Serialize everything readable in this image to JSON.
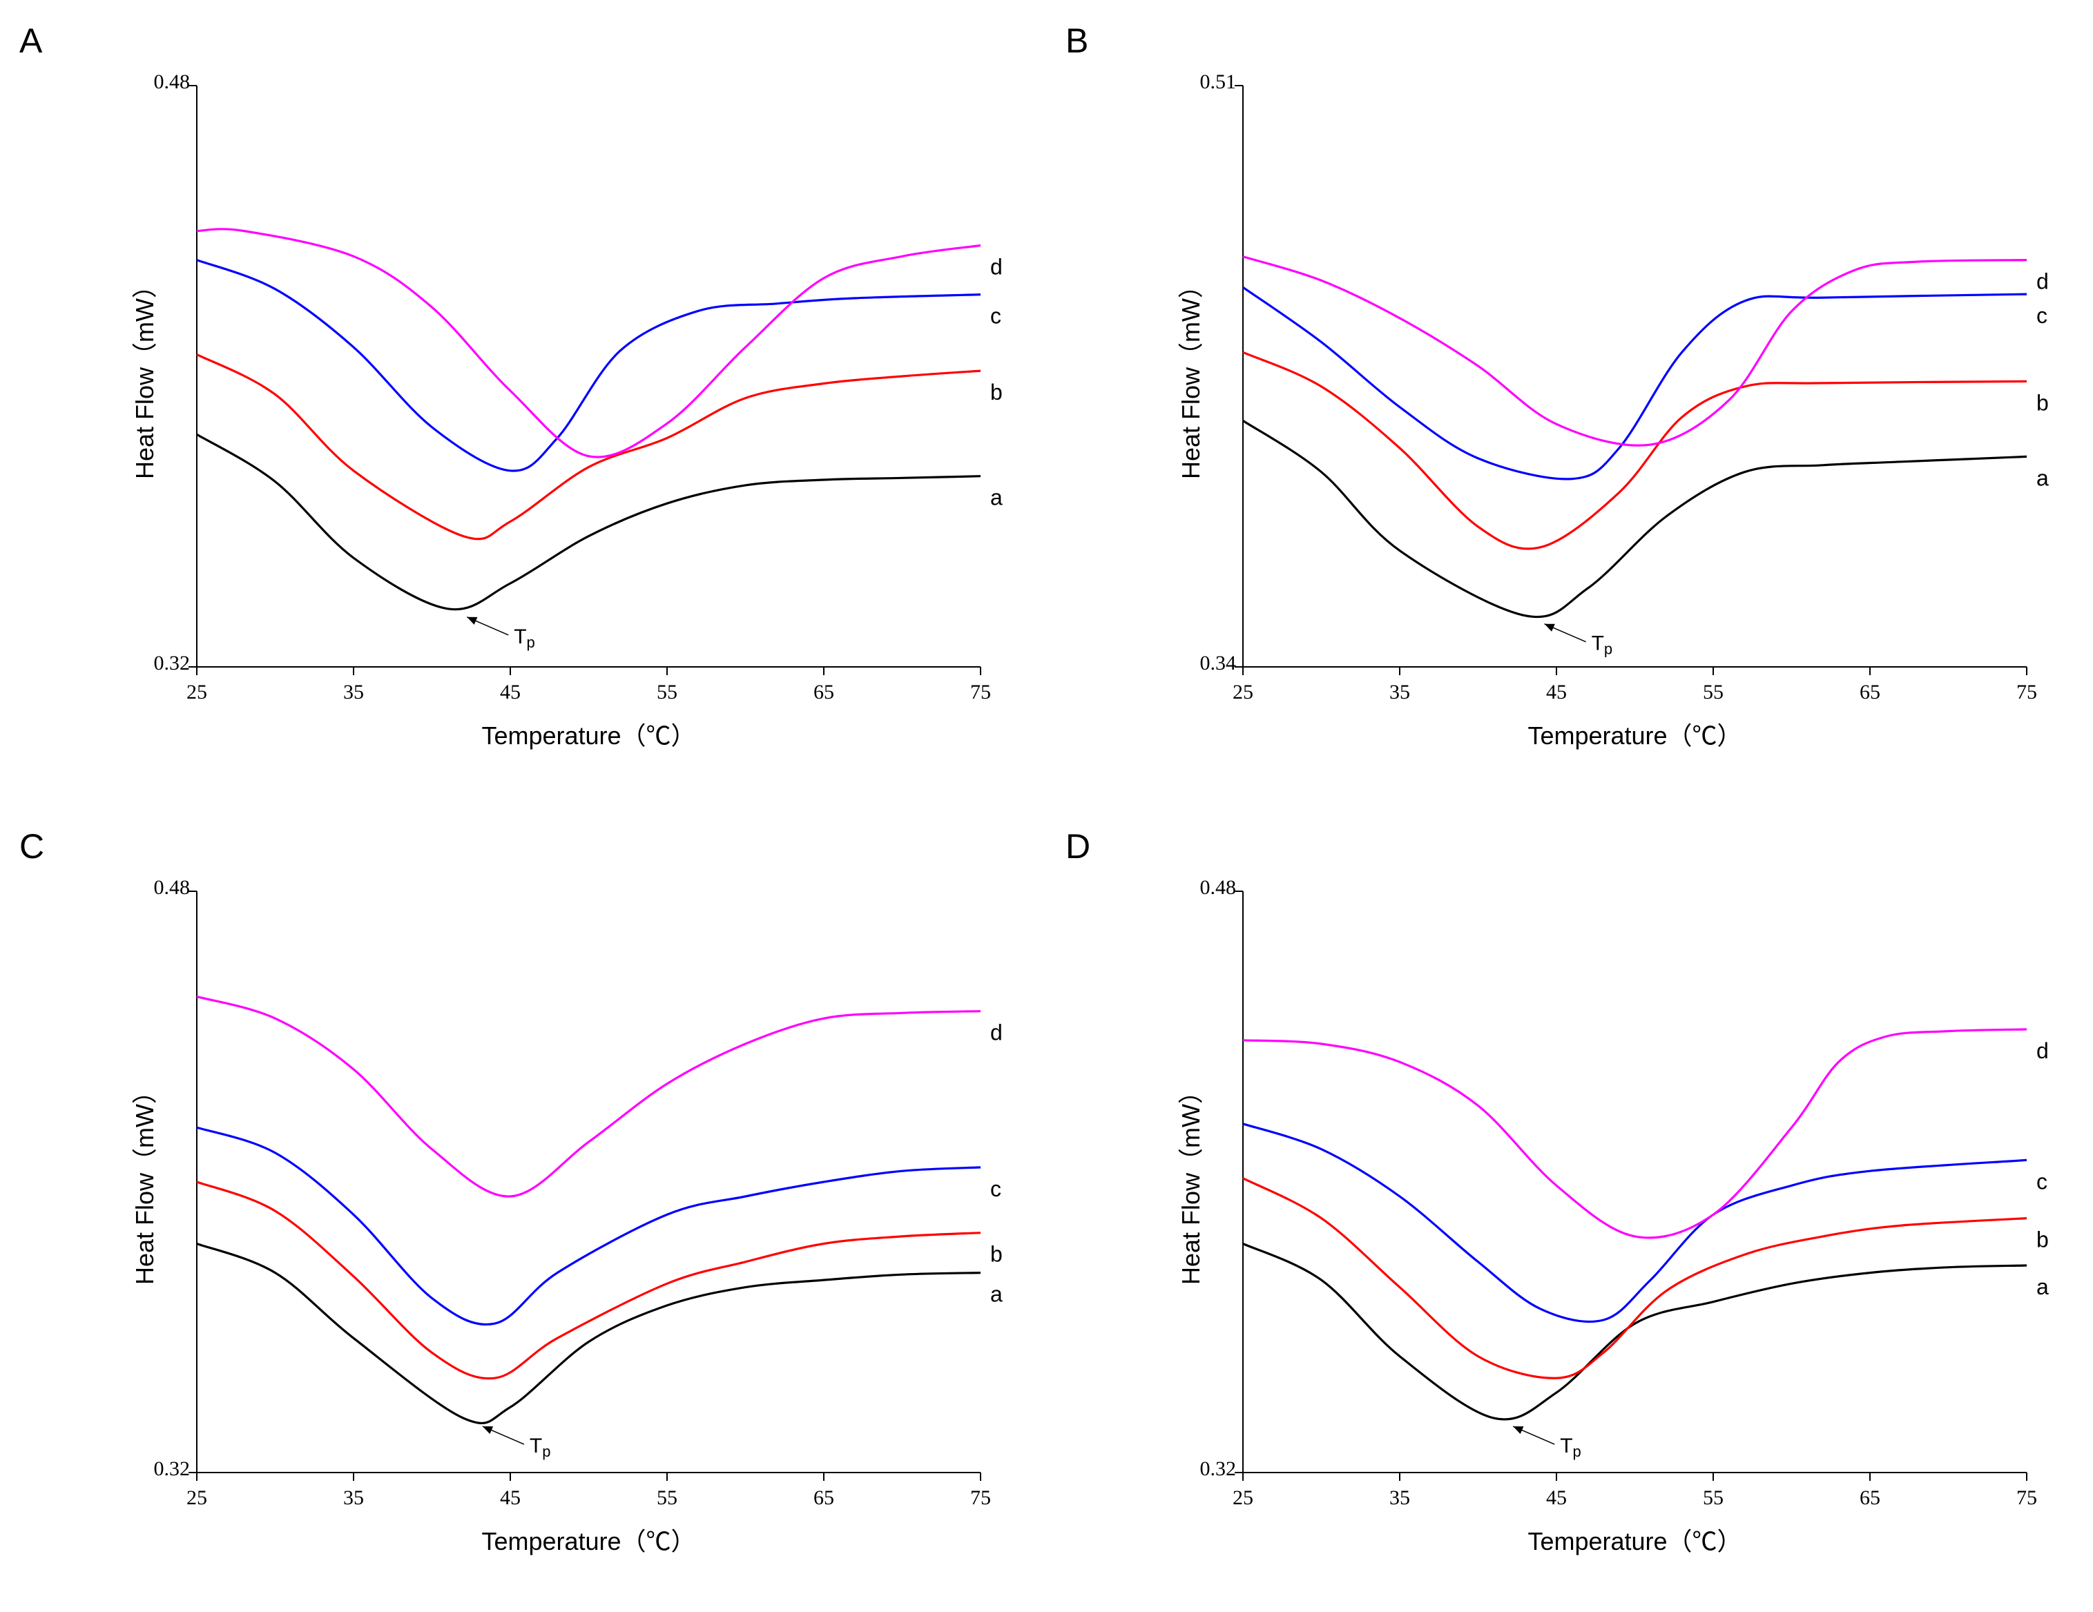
{
  "chart_data": [
    {
      "type": "line",
      "panel_label": "A",
      "xlabel": "Temperature（℃）",
      "ylabel": "Heat Flow（mW）",
      "xlim": [
        25,
        75
      ],
      "ylim": [
        0.32,
        0.48
      ],
      "xticks": [
        25,
        35,
        45,
        55,
        65,
        75
      ],
      "yticks": [
        0.32,
        0.48
      ],
      "annotation": {
        "text": "Tp",
        "x": 41,
        "y": 0.336
      },
      "series": [
        {
          "name": "a",
          "color": "#000000",
          "x": [
            25,
            30,
            35,
            41,
            45,
            50,
            55,
            60,
            65,
            70,
            75
          ],
          "y": [
            0.384,
            0.371,
            0.35,
            0.336,
            0.343,
            0.356,
            0.365,
            0.37,
            0.3715,
            0.372,
            0.3725
          ]
        },
        {
          "name": "b",
          "color": "#ff0000",
          "x": [
            25,
            30,
            35,
            42,
            45,
            50,
            55,
            60,
            65,
            70,
            75
          ],
          "y": [
            0.406,
            0.395,
            0.374,
            0.356,
            0.36,
            0.375,
            0.383,
            0.394,
            0.398,
            0.4,
            0.4015
          ]
        },
        {
          "name": "c",
          "color": "#0000ff",
          "x": [
            25,
            30,
            35,
            40,
            45,
            48,
            52,
            57,
            62,
            67,
            75
          ],
          "y": [
            0.432,
            0.424,
            0.408,
            0.386,
            0.374,
            0.383,
            0.407,
            0.418,
            0.42,
            0.4215,
            0.4225
          ]
        },
        {
          "name": "d",
          "color": "#ff00ff",
          "x": [
            25,
            28,
            35,
            40,
            45,
            50,
            55,
            60,
            65,
            70,
            75
          ],
          "y": [
            0.44,
            0.44,
            0.433,
            0.419,
            0.396,
            0.378,
            0.387,
            0.408,
            0.427,
            0.433,
            0.436
          ]
        }
      ]
    },
    {
      "type": "line",
      "panel_label": "B",
      "xlabel": "Temperature（℃）",
      "ylabel": "Heat Flow（mW）",
      "xlim": [
        25,
        75
      ],
      "ylim": [
        0.34,
        0.51
      ],
      "xticks": [
        25,
        35,
        45,
        55,
        65,
        75
      ],
      "yticks": [
        0.34,
        0.51
      ],
      "annotation": {
        "text": "Tp",
        "x": 43,
        "y": 0.355
      },
      "series": [
        {
          "name": "a",
          "color": "#000000",
          "x": [
            25,
            30,
            35,
            43,
            47,
            52,
            57,
            62,
            67,
            75
          ],
          "y": [
            0.412,
            0.397,
            0.374,
            0.355,
            0.363,
            0.384,
            0.397,
            0.399,
            0.4,
            0.4015
          ]
        },
        {
          "name": "b",
          "color": "#ff0000",
          "x": [
            25,
            30,
            35,
            40,
            44,
            49,
            53,
            57,
            62,
            75
          ],
          "y": [
            0.432,
            0.422,
            0.404,
            0.381,
            0.375,
            0.391,
            0.413,
            0.422,
            0.423,
            0.4235
          ]
        },
        {
          "name": "c",
          "color": "#0000ff",
          "x": [
            25,
            30,
            35,
            40,
            46,
            49,
            53,
            57,
            62,
            75
          ],
          "y": [
            0.451,
            0.435,
            0.416,
            0.401,
            0.395,
            0.404,
            0.432,
            0.447,
            0.448,
            0.449
          ]
        },
        {
          "name": "d",
          "color": "#ff00ff",
          "x": [
            25,
            30,
            35,
            40,
            45,
            51,
            56,
            60,
            64,
            68,
            75
          ],
          "y": [
            0.46,
            0.453,
            0.442,
            0.428,
            0.411,
            0.405,
            0.418,
            0.444,
            0.456,
            0.4585,
            0.459
          ]
        }
      ]
    },
    {
      "type": "line",
      "panel_label": "C",
      "xlabel": "Temperature（℃）",
      "ylabel": "Heat Flow（mW）",
      "xlim": [
        25,
        75
      ],
      "ylim": [
        0.32,
        0.48
      ],
      "xticks": [
        25,
        35,
        45,
        55,
        65,
        75
      ],
      "yticks": [
        0.32,
        0.48
      ],
      "annotation": {
        "text": "Tp",
        "x": 42,
        "y": 0.335
      },
      "series": [
        {
          "name": "a",
          "color": "#000000",
          "x": [
            25,
            30,
            35,
            42,
            45,
            50,
            55,
            60,
            65,
            70,
            75
          ],
          "y": [
            0.383,
            0.375,
            0.357,
            0.335,
            0.338,
            0.356,
            0.366,
            0.371,
            0.373,
            0.3745,
            0.375
          ]
        },
        {
          "name": "b",
          "color": "#ff0000",
          "x": [
            25,
            30,
            35,
            40,
            44,
            48,
            55,
            60,
            65,
            70,
            75
          ],
          "y": [
            0.4,
            0.392,
            0.374,
            0.353,
            0.346,
            0.357,
            0.372,
            0.378,
            0.383,
            0.385,
            0.386
          ]
        },
        {
          "name": "c",
          "color": "#0000ff",
          "x": [
            25,
            30,
            35,
            40,
            44,
            48,
            55,
            60,
            65,
            70,
            75
          ],
          "y": [
            0.415,
            0.408,
            0.391,
            0.368,
            0.361,
            0.375,
            0.391,
            0.396,
            0.4,
            0.403,
            0.404
          ]
        },
        {
          "name": "d",
          "color": "#ff00ff",
          "x": [
            25,
            30,
            35,
            40,
            45,
            50,
            55,
            60,
            65,
            70,
            75
          ],
          "y": [
            0.451,
            0.445,
            0.431,
            0.409,
            0.396,
            0.411,
            0.427,
            0.438,
            0.445,
            0.4465,
            0.447
          ]
        }
      ]
    },
    {
      "type": "line",
      "panel_label": "D",
      "xlabel": "Temperature（℃）",
      "ylabel": "Heat Flow（mW）",
      "xlim": [
        25,
        75
      ],
      "ylim": [
        0.32,
        0.48
      ],
      "xticks": [
        25,
        35,
        45,
        55,
        65,
        75
      ],
      "yticks": [
        0.32,
        0.48
      ],
      "annotation": {
        "text": "Tp",
        "x": 41,
        "y": 0.335
      },
      "series": [
        {
          "name": "a",
          "color": "#000000",
          "x": [
            25,
            30,
            35,
            41,
            45,
            50,
            55,
            60,
            65,
            70,
            75
          ],
          "y": [
            0.383,
            0.373,
            0.352,
            0.335,
            0.342,
            0.361,
            0.367,
            0.372,
            0.375,
            0.3765,
            0.377
          ]
        },
        {
          "name": "b",
          "color": "#ff0000",
          "x": [
            25,
            30,
            35,
            40,
            45,
            48,
            52,
            57,
            62,
            67,
            75
          ],
          "y": [
            0.401,
            0.39,
            0.371,
            0.352,
            0.346,
            0.353,
            0.37,
            0.38,
            0.385,
            0.388,
            0.39
          ]
        },
        {
          "name": "c",
          "color": "#0000ff",
          "x": [
            25,
            30,
            35,
            40,
            44,
            48,
            51,
            55,
            60,
            65,
            75
          ],
          "y": [
            0.416,
            0.409,
            0.396,
            0.378,
            0.365,
            0.362,
            0.373,
            0.391,
            0.399,
            0.403,
            0.406
          ]
        },
        {
          "name": "d",
          "color": "#ff00ff",
          "x": [
            25,
            30,
            35,
            40,
            45,
            50,
            55,
            60,
            63,
            66,
            70,
            75
          ],
          "y": [
            0.439,
            0.438,
            0.433,
            0.421,
            0.399,
            0.385,
            0.391,
            0.415,
            0.433,
            0.44,
            0.4415,
            0.442
          ]
        }
      ]
    }
  ]
}
